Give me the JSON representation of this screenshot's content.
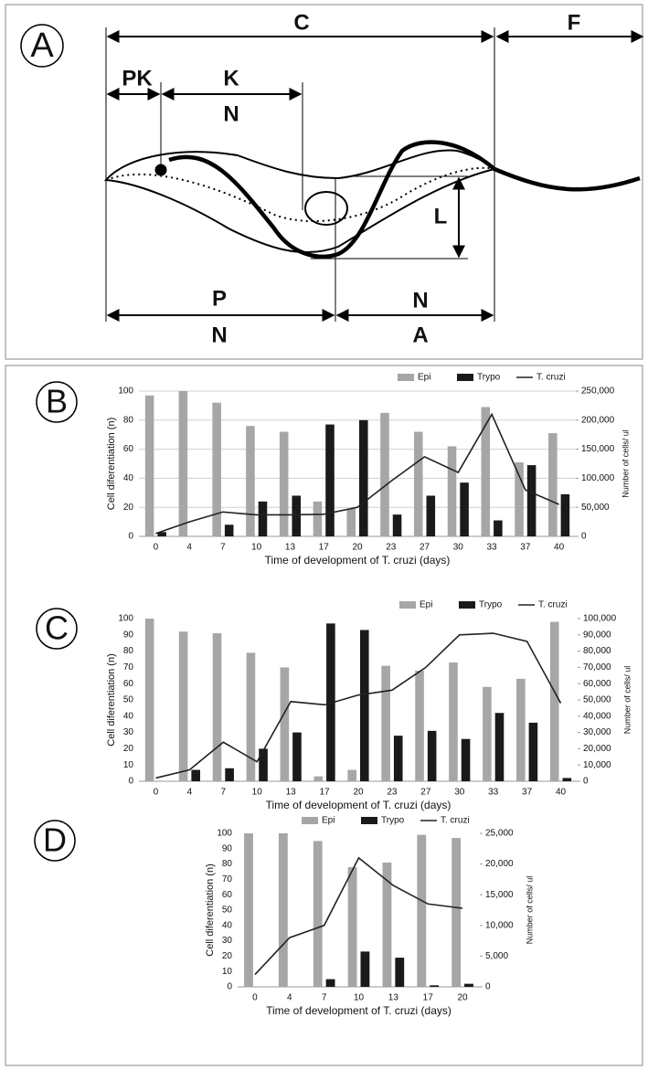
{
  "diagram": {
    "panel_label": "A",
    "labels": [
      "C",
      "F",
      "PK",
      "K",
      "N",
      "L",
      "P",
      "N",
      "N",
      "A"
    ]
  },
  "chart_data": [
    {
      "type": "combo",
      "panel_label": "B",
      "ylabel": "Cell diferentiation (n)",
      "y2label": "Number of cells/ ul",
      "xlabel": "Time of development of T. cruzi (days)",
      "categories": [
        "0",
        "4",
        "7",
        "10",
        "13",
        "17",
        "20",
        "23",
        "27",
        "30",
        "33",
        "37",
        "40"
      ],
      "series": [
        {
          "name": "Epi",
          "color": "#a6a6a6",
          "kind": "bar",
          "values": [
            97,
            100,
            92,
            76,
            72,
            24,
            19,
            85,
            72,
            62,
            89,
            51,
            71
          ]
        },
        {
          "name": "Trypo",
          "color": "#1a1a1a",
          "kind": "bar",
          "values": [
            3,
            0,
            8,
            24,
            28,
            77,
            80,
            15,
            28,
            37,
            11,
            49,
            29
          ]
        },
        {
          "name": "T. cruzi",
          "color": "#222222",
          "kind": "line",
          "axis": "y2",
          "values": [
            5000,
            25000,
            42000,
            37000,
            37000,
            38000,
            50000,
            95000,
            137000,
            110000,
            210000,
            80000,
            55000
          ]
        }
      ],
      "ylim": [
        0,
        100
      ],
      "yticks": [
        0,
        20,
        40,
        60,
        80,
        100
      ],
      "y2lim": [
        0,
        250000
      ],
      "y2ticks": [
        0,
        {
          "value": 50000,
          "label": "50,000"
        },
        {
          "value": 100000,
          "label": "100,000"
        },
        {
          "value": 150000,
          "label": "150,000"
        },
        {
          "value": 200000,
          "label": "200,000"
        },
        {
          "value": 250000,
          "label": "250,000"
        }
      ],
      "grid": true
    },
    {
      "type": "combo",
      "panel_label": "C",
      "ylabel": "Cell diferentiation (n)",
      "y2label": "Number of cells/ ul",
      "xlabel": "Time of development of T. cruzi (days)",
      "categories": [
        "0",
        "4",
        "7",
        "10",
        "13",
        "17",
        "20",
        "23",
        "27",
        "30",
        "33",
        "37",
        "40"
      ],
      "series": [
        {
          "name": "Epi",
          "color": "#a6a6a6",
          "kind": "bar",
          "values": [
            100,
            92,
            91,
            79,
            70,
            3,
            7,
            71,
            68,
            73,
            58,
            63,
            98
          ]
        },
        {
          "name": "Trypo",
          "color": "#1a1a1a",
          "kind": "bar",
          "values": [
            0,
            7,
            8,
            20,
            30,
            97,
            93,
            28,
            31,
            26,
            42,
            36,
            2
          ]
        },
        {
          "name": "T. cruzi",
          "color": "#222222",
          "kind": "line",
          "axis": "y2",
          "values": [
            2000,
            7000,
            24000,
            12000,
            49000,
            47000,
            53000,
            56000,
            70000,
            90000,
            91000,
            86000,
            48000
          ]
        }
      ],
      "ylim": [
        0,
        100
      ],
      "yticks": [
        0,
        10,
        20,
        30,
        40,
        50,
        60,
        70,
        80,
        90,
        100
      ],
      "y2lim": [
        0,
        100000
      ],
      "y2ticks": [
        0,
        {
          "value": 10000,
          "label": "10,000"
        },
        {
          "value": 20000,
          "label": "20,000"
        },
        {
          "value": 30000,
          "label": "30,000"
        },
        {
          "value": 40000,
          "label": "40,000"
        },
        {
          "value": 50000,
          "label": "50,000"
        },
        {
          "value": 60000,
          "label": "60,000"
        },
        {
          "value": 70000,
          "label": "70,000"
        },
        {
          "value": 80000,
          "label": "80,000"
        },
        {
          "value": 90000,
          "label": "90,000"
        },
        {
          "value": 100000,
          "label": "100,000"
        }
      ],
      "grid": false
    },
    {
      "type": "combo",
      "panel_label": "D",
      "ylabel": "Cell diferentiation (n)",
      "y2label": "Number of cells/ ul",
      "xlabel": "Time of development of T. cruzi (days)",
      "categories": [
        "0",
        "4",
        "7",
        "10",
        "13",
        "17",
        "20"
      ],
      "series": [
        {
          "name": "Epi",
          "color": "#a6a6a6",
          "kind": "bar",
          "values": [
            100,
            100,
            95,
            78,
            81,
            99,
            97
          ]
        },
        {
          "name": "Trypo",
          "color": "#1a1a1a",
          "kind": "bar",
          "values": [
            0,
            0,
            5,
            23,
            19,
            1,
            2
          ]
        },
        {
          "name": "T. cruzi",
          "color": "#222222",
          "kind": "line",
          "axis": "y2",
          "values": [
            2000,
            8000,
            10000,
            21000,
            16500,
            13500,
            12800
          ]
        }
      ],
      "ylim": [
        0,
        100
      ],
      "yticks": [
        0,
        10,
        20,
        30,
        40,
        50,
        60,
        70,
        80,
        90,
        100
      ],
      "y2lim": [
        0,
        25000
      ],
      "y2ticks": [
        0,
        {
          "value": 5000,
          "label": "5,000"
        },
        {
          "value": 10000,
          "label": "10,000"
        },
        {
          "value": 15000,
          "label": "15,000"
        },
        {
          "value": 20000,
          "label": "20,000"
        },
        {
          "value": 25000,
          "label": "25,000"
        }
      ],
      "grid": false
    }
  ]
}
